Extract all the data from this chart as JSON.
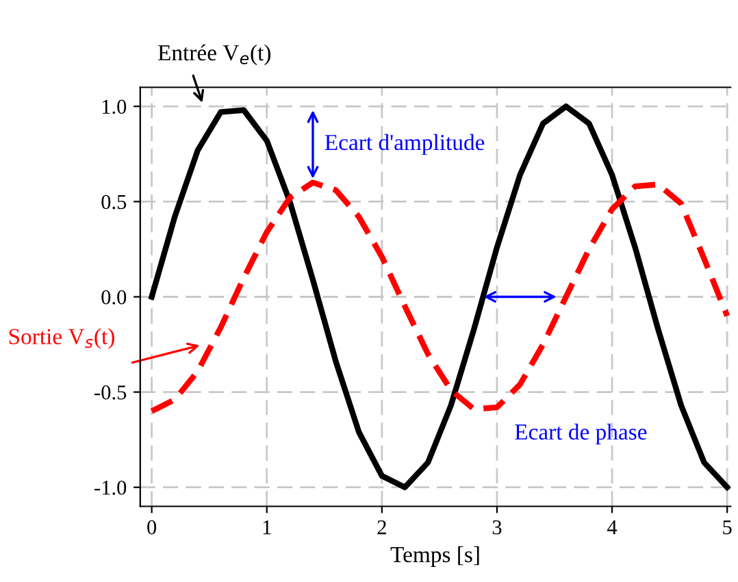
{
  "chart_data": {
    "type": "line",
    "xlabel": "Temps [s]",
    "xlim": [
      -0.1,
      5.03
    ],
    "ylim": [
      -1.1,
      1.1
    ],
    "xticks": [
      0,
      1,
      2,
      3,
      4,
      5
    ],
    "yticks": [
      {
        "value": -1,
        "label": "-1.0"
      },
      {
        "value": -0.5,
        "label": "-0.5"
      },
      {
        "value": 0,
        "label": "0.0"
      },
      {
        "value": 0.5,
        "label": "0.5"
      },
      {
        "value": 1,
        "label": "1.0"
      }
    ],
    "grid": true,
    "line_style": "solid",
    "x": [
      0,
      0.2,
      0.4,
      0.6,
      0.8,
      1.0,
      1.2,
      1.4,
      1.6,
      1.8,
      2.0,
      2.2,
      2.4,
      2.6,
      2.8,
      3.0,
      3.2,
      3.4,
      3.6,
      3.8,
      4.0,
      4.2,
      4.4,
      4.6,
      4.8,
      5.0
    ],
    "series": [
      {
        "color": "#000000",
        "values": [
          0,
          0.42,
          0.77,
          0.97,
          0.98,
          0.82,
          0.5,
          0.09,
          -0.34,
          -0.71,
          -0.94,
          -1.0,
          -0.87,
          -0.57,
          -0.17,
          0.26,
          0.64,
          0.91,
          1.0,
          0.91,
          0.64,
          0.26,
          -0.17,
          -0.57,
          -0.87,
          -1.0
        ]
      },
      {
        "color": "#ff0000",
        "line_style": "dashed",
        "values": [
          -0.6,
          -0.54,
          -0.39,
          -0.16,
          0.1,
          0.34,
          0.52,
          0.6,
          0.56,
          0.42,
          0.21,
          -0.05,
          -0.3,
          -0.49,
          -0.59,
          -0.58,
          -0.46,
          -0.25,
          0,
          0.25,
          0.46,
          0.58,
          0.59,
          0.49,
          0.2,
          -0.1
        ]
      }
    ],
    "annotations": [
      "Entrée V$_{e}$(t)",
      "Sortie V$_{s}$(t)",
      "Ecart d'amplitude",
      "Ecart de phase"
    ]
  }
}
